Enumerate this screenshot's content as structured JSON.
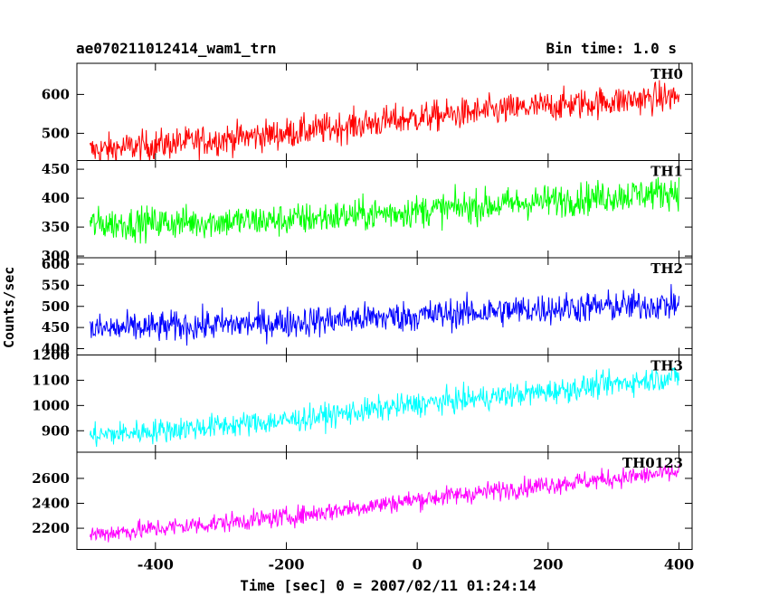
{
  "chart_data": {
    "type": "line",
    "title": "ae070211012414_wam1_trn",
    "subtitle": "Bin time: 1.0 s",
    "xlabel": "Time [sec] 0 = 2007/02/11 01:24:14",
    "ylabel": "Counts/sec",
    "xlim": [
      -520,
      420
    ],
    "x_ticks": [
      -400,
      -200,
      0,
      200,
      400
    ],
    "x_range": [
      -500,
      400
    ],
    "bin_time": 1.0,
    "grid": false,
    "panels": [
      {
        "name": "TH0",
        "color": "#ff0000",
        "ylim": [
          430,
          680
        ],
        "y_ticks": [
          500,
          600
        ],
        "trend": [
          {
            "x": -500,
            "y": 455
          },
          {
            "x": -200,
            "y": 500
          },
          {
            "x": 0,
            "y": 540
          },
          {
            "x": 200,
            "y": 570
          },
          {
            "x": 400,
            "y": 595
          }
        ],
        "noise": 28
      },
      {
        "name": "TH1",
        "color": "#00ff00",
        "ylim": [
          297,
          465
        ],
        "y_ticks": [
          300,
          350,
          400,
          450
        ],
        "trend": [
          {
            "x": -500,
            "y": 355
          },
          {
            "x": -200,
            "y": 362
          },
          {
            "x": 0,
            "y": 378
          },
          {
            "x": 200,
            "y": 395
          },
          {
            "x": 400,
            "y": 412
          }
        ],
        "noise": 20
      },
      {
        "name": "TH2",
        "color": "#0000ff",
        "ylim": [
          385,
          615
        ],
        "y_ticks": [
          400,
          450,
          500,
          550,
          600
        ],
        "trend": [
          {
            "x": -500,
            "y": 445
          },
          {
            "x": -200,
            "y": 462
          },
          {
            "x": 0,
            "y": 478
          },
          {
            "x": 200,
            "y": 495
          },
          {
            "x": 400,
            "y": 505
          }
        ],
        "noise": 26
      },
      {
        "name": "TH3",
        "color": "#00ffff",
        "ylim": [
          815,
          1200
        ],
        "y_ticks": [
          900,
          1000,
          1100,
          1200
        ],
        "trend": [
          {
            "x": -500,
            "y": 880
          },
          {
            "x": -200,
            "y": 940
          },
          {
            "x": 0,
            "y": 1005
          },
          {
            "x": 200,
            "y": 1055
          },
          {
            "x": 400,
            "y": 1115
          }
        ],
        "noise": 34
      },
      {
        "name": "TH0123",
        "color": "#ff00ff",
        "ylim": [
          2030,
          2810
        ],
        "y_ticks": [
          2200,
          2400,
          2600
        ],
        "trend": [
          {
            "x": -500,
            "y": 2150
          },
          {
            "x": -200,
            "y": 2290
          },
          {
            "x": 0,
            "y": 2430
          },
          {
            "x": 200,
            "y": 2550
          },
          {
            "x": 400,
            "y": 2650
          }
        ],
        "noise": 55
      }
    ]
  }
}
